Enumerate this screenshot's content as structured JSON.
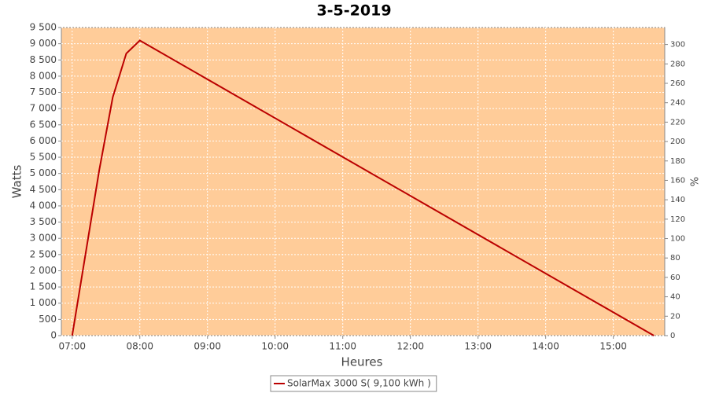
{
  "chart_data": {
    "type": "line",
    "title": "3-5-2019",
    "x_label": "Heures",
    "y_label": "Watts",
    "y2_label": "%",
    "x": [
      7.0,
      7.4,
      7.6,
      7.8,
      8.0,
      15.6
    ],
    "series": [
      {
        "name": "SolarMax 3000 S( 9,100 kWh )",
        "color": "#bb0000",
        "values": [
          0,
          5100,
          7350,
          8700,
          9100,
          0
        ]
      }
    ],
    "xlim": [
      6.84,
      15.76
    ],
    "xticks": [
      {
        "value": 7,
        "label": "07:00"
      },
      {
        "value": 8,
        "label": "08:00"
      },
      {
        "value": 9,
        "label": "09:00"
      },
      {
        "value": 10,
        "label": "10:00"
      },
      {
        "value": 11,
        "label": "11:00"
      },
      {
        "value": 12,
        "label": "12:00"
      },
      {
        "value": 13,
        "label": "13:00"
      },
      {
        "value": 14,
        "label": "14:00"
      },
      {
        "value": 15,
        "label": "15:00"
      }
    ],
    "ylim": [
      0,
      9500
    ],
    "yticks": [
      0,
      500,
      {
        "value": 1000,
        "label": "1 000"
      },
      {
        "value": 1500,
        "label": "1 500"
      },
      {
        "value": 2000,
        "label": "2 000"
      },
      {
        "value": 2500,
        "label": "2 500"
      },
      {
        "value": 3000,
        "label": "3 000"
      },
      {
        "value": 3500,
        "label": "3 500"
      },
      {
        "value": 4000,
        "label": "4 000"
      },
      {
        "value": 4500,
        "label": "4 500"
      },
      {
        "value": 5000,
        "label": "5 000"
      },
      {
        "value": 5500,
        "label": "5 500"
      },
      {
        "value": 6000,
        "label": "6 000"
      },
      {
        "value": 6500,
        "label": "6 500"
      },
      {
        "value": 7000,
        "label": "7 000"
      },
      {
        "value": 7500,
        "label": "7 500"
      },
      {
        "value": 8000,
        "label": "8 000"
      },
      {
        "value": 8500,
        "label": "8 500"
      },
      {
        "value": 9000,
        "label": "9 000"
      },
      {
        "value": 9500,
        "label": "9 500"
      }
    ],
    "y2lim": [
      0,
      317.5
    ],
    "y2ticks": [
      0,
      20,
      40,
      60,
      80,
      100,
      120,
      140,
      160,
      180,
      200,
      220,
      240,
      260,
      280,
      300
    ],
    "grid": true,
    "background": "#ffcc99",
    "legend": "bottom"
  }
}
